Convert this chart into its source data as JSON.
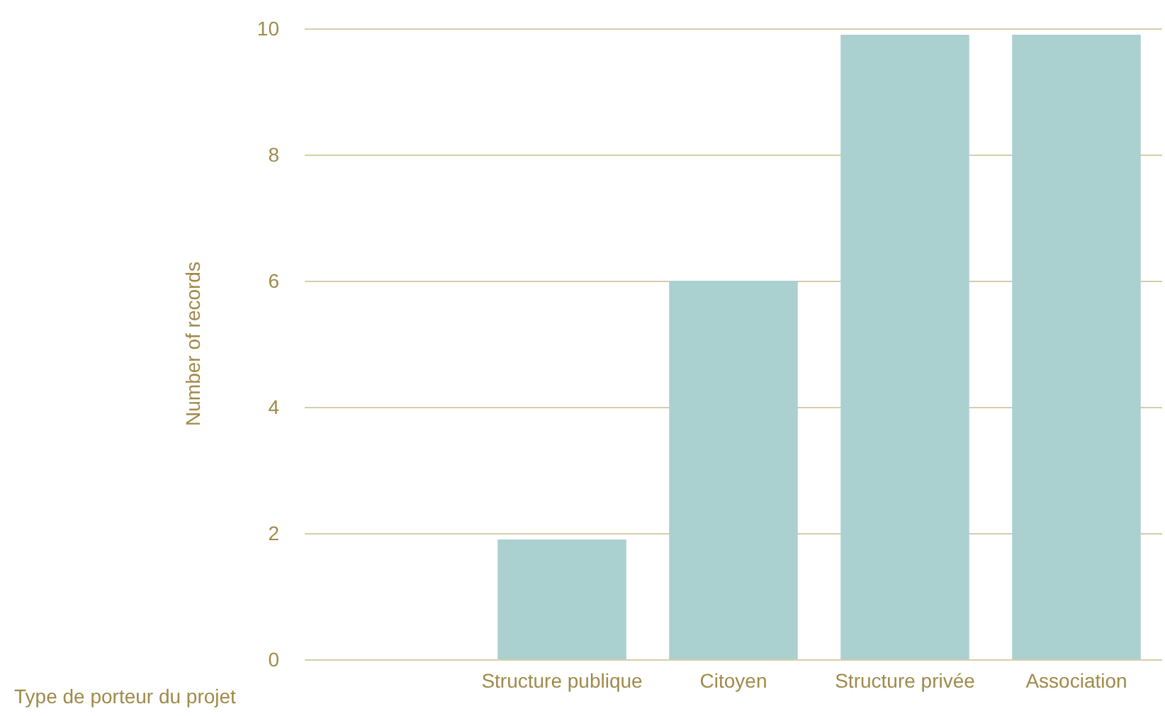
{
  "chart_data": {
    "type": "bar",
    "xlabel": "Type de porteur du projet",
    "ylabel": "Number of records",
    "categories": [
      null,
      "Structure publique",
      "Citoyen",
      "Structure privée",
      "Association"
    ],
    "values": [
      null,
      1.9,
      6,
      9.9,
      9.9
    ],
    "color": "#aad0cf",
    "ylim": [
      0,
      10
    ],
    "yticks": [
      0,
      2,
      4,
      6,
      8,
      10
    ],
    "grid": "y"
  }
}
